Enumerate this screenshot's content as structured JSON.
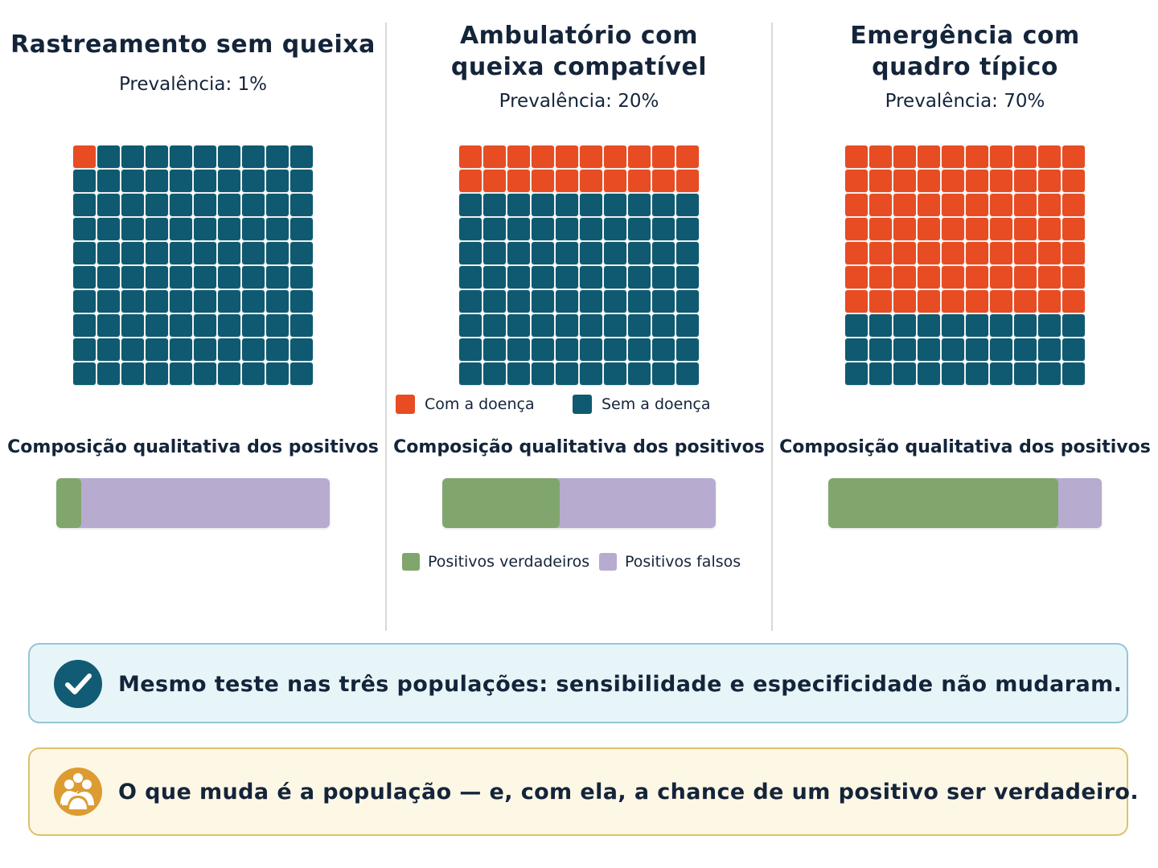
{
  "colors": {
    "disease": "#e84c23",
    "no_disease": "#0f5a71",
    "true_positive": "#80a66d",
    "false_positive": "#b8abd0",
    "check_icon_bg": "#115b74",
    "people_icon_bg": "#dc9c32"
  },
  "panels": [
    {
      "title_lines": [
        "Rastreamento sem queixa"
      ],
      "prevalence_label": "Prevalência: 1%",
      "prevalence_percent": 1,
      "composition_title": "Composição qualitativa dos positivos",
      "true_positive_share": 0.09
    },
    {
      "title_lines": [
        "Ambulatório com",
        "queixa compatível"
      ],
      "prevalence_label": "Prevalência: 20%",
      "prevalence_percent": 20,
      "composition_title": "Composição qualitativa dos positivos",
      "true_positive_share": 0.43
    },
    {
      "title_lines": [
        "Emergência com",
        "quadro típico"
      ],
      "prevalence_label": "Prevalência: 70%",
      "prevalence_percent": 70,
      "composition_title": "Composição qualitativa dos positivos",
      "true_positive_share": 0.84
    }
  ],
  "waffle_legend": {
    "disease": "Com a doença",
    "no_disease": "Sem a doença"
  },
  "bar_legend": {
    "true_positive": "Positivos verdadeiros",
    "false_positive": "Positivos falsos"
  },
  "callouts": {
    "same_test": {
      "icon": "check-circle-icon",
      "text": "Mesmo teste nas três populações: sensibilidade e especificidade não mudaram."
    },
    "population": {
      "icon": "people-icon",
      "text": "O que muda é a população — e, com ela, a chance de um positivo ser verdadeiro."
    }
  }
}
